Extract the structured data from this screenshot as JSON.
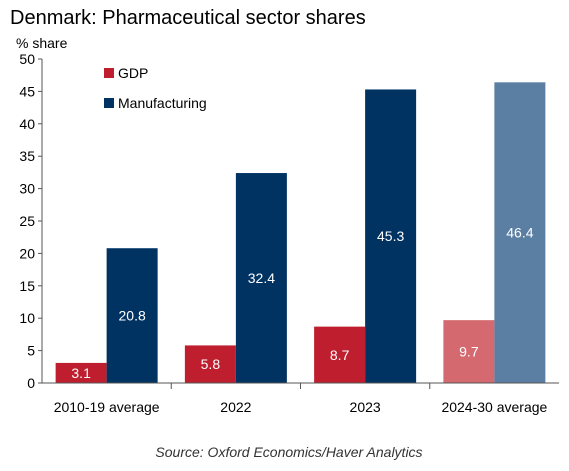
{
  "chart_data": {
    "type": "bar",
    "title": "Denmark: Pharmaceutical sector shares",
    "ylabel": "% share",
    "xlabel": "",
    "ylim": [
      0,
      50
    ],
    "yticks": [
      0,
      5,
      10,
      15,
      20,
      25,
      30,
      35,
      40,
      45,
      50
    ],
    "categories": [
      "2010-19 average",
      "2022",
      "2023",
      "2024-30 average"
    ],
    "series": [
      {
        "name": "GDP",
        "values": [
          3.1,
          5.8,
          8.7,
          9.7
        ],
        "color": "#be1e2d",
        "forecast_color": "#d46a6f"
      },
      {
        "name": "Manufacturing",
        "values": [
          20.8,
          32.4,
          45.3,
          46.4
        ],
        "color": "#003262",
        "forecast_color": "#5b7fa3"
      }
    ],
    "forecast_categories": [
      "2024-30 average"
    ],
    "legend_position": "top-left",
    "grid": false,
    "source": "Source: Oxford Economics/Haver Analytics"
  }
}
